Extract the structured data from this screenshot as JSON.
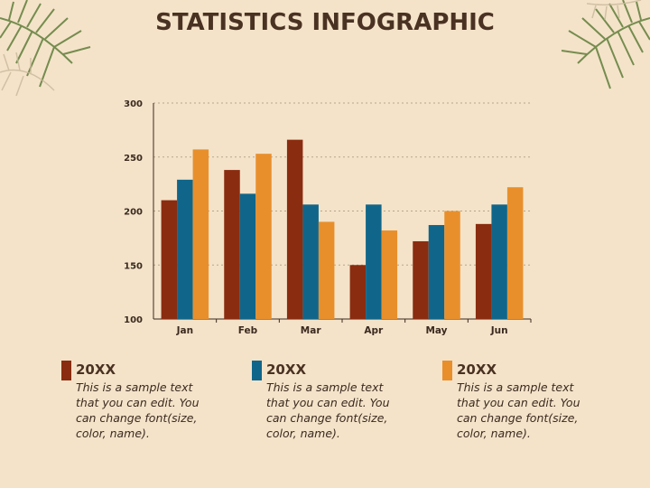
{
  "title": "STATISTICS INFOGRAPHIC",
  "colors": {
    "background": "#f4e3c9",
    "series": [
      "#8a2c10",
      "#10668a",
      "#e88f2c"
    ],
    "text": "#4a3223"
  },
  "chart_data": {
    "type": "bar",
    "categories": [
      "Jan",
      "Feb",
      "Mar",
      "Apr",
      "May",
      "Jun"
    ],
    "series": [
      {
        "values": [
          210,
          238,
          266,
          150,
          172,
          188
        ]
      },
      {
        "values": [
          229,
          216,
          206,
          206,
          187,
          206
        ]
      },
      {
        "values": [
          257,
          253,
          190,
          182,
          200,
          222
        ]
      }
    ],
    "ylim": [
      100,
      300
    ],
    "yticks": [
      100,
      150,
      200,
      250,
      300
    ],
    "grid": true
  },
  "legend": [
    {
      "heading": "20XX",
      "text": "This is a sample text that you can edit. You can change font(size, color, name)."
    },
    {
      "heading": "20XX",
      "text": "This is a sample text that you can edit. You can change font(size, color, name)."
    },
    {
      "heading": "20XX",
      "text": "This is a sample text that you can edit. You can change font(size, color, name)."
    }
  ]
}
